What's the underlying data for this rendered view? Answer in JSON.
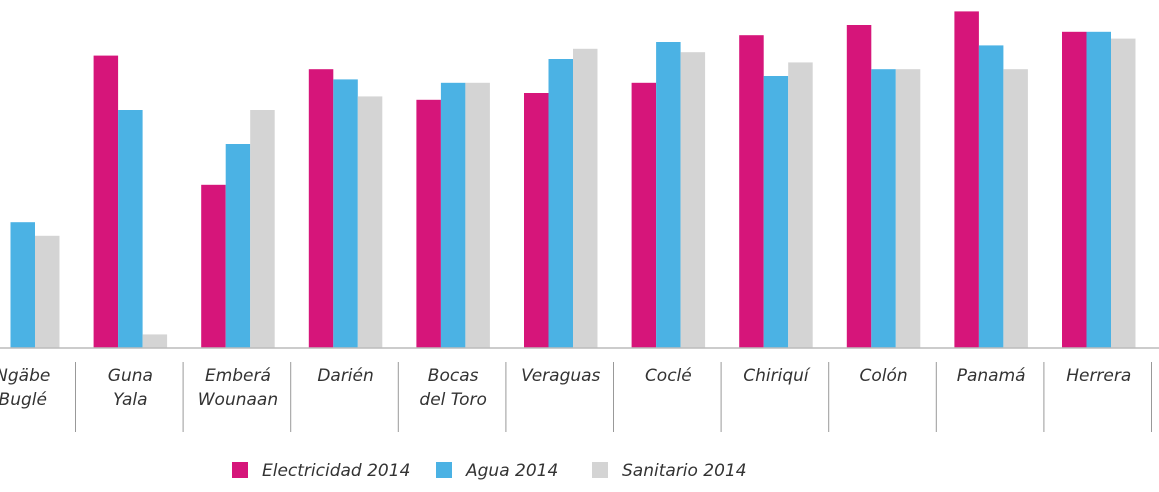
{
  "chart_data": {
    "type": "bar",
    "categories": [
      [
        "Ngäbe",
        "Buglé"
      ],
      [
        "Guna",
        "Yala"
      ],
      [
        "Emberá",
        "Wounaan"
      ],
      [
        "Darién"
      ],
      [
        "Bocas",
        "del Toro"
      ],
      [
        "Veraguas"
      ],
      [
        "Coclé"
      ],
      [
        "Chiriquí"
      ],
      [
        "Colón"
      ],
      [
        "Panamá"
      ],
      [
        "Herrera"
      ]
    ],
    "series": [
      {
        "name": "Electricidad 2014",
        "color": "#d6157a",
        "values": [
          null,
          86,
          48,
          82,
          73,
          75,
          78,
          92,
          95,
          99,
          93
        ]
      },
      {
        "name": "Agua 2014",
        "color": "#4bb2e4",
        "values": [
          37,
          70,
          60,
          79,
          78,
          85,
          90,
          80,
          82,
          89,
          93
        ]
      },
      {
        "name": "Sanitario 2014",
        "color": "#d4d4d4",
        "values": [
          33,
          4,
          70,
          74,
          78,
          88,
          87,
          84,
          82,
          82,
          91
        ]
      }
    ],
    "ylim": [
      0,
      100
    ],
    "legend": "bottom"
  }
}
